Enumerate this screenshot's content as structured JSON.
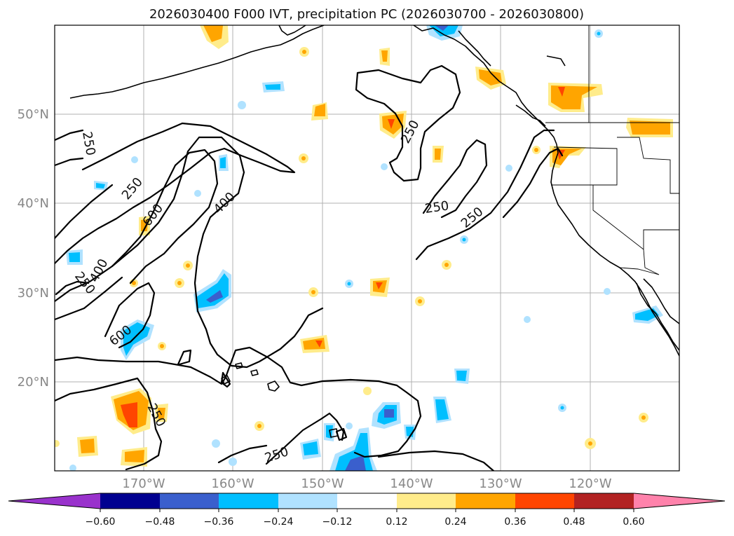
{
  "title": "2026030400 F000 IVT, precipitation PC (2026030700 - 2026030800)",
  "lat_labels": [
    "50°N",
    "40°N",
    "30°N",
    "20°N"
  ],
  "lon_labels": [
    "170°W",
    "160°W",
    "150°W",
    "140°W",
    "130°W",
    "120°W"
  ],
  "colorbar": {
    "tick_labels": [
      "−0.60",
      "−0.48",
      "−0.36",
      "−0.24",
      "−0.12",
      "0.12",
      "0.24",
      "0.36",
      "0.48",
      "0.60"
    ],
    "colors": [
      "#9932cc",
      "#000090",
      "#3a5fcd",
      "#00bfff",
      "#b0e2ff",
      "#ffffff",
      "#ffec8b",
      "#ffa500",
      "#ff4500",
      "#b22222",
      "#ff82ab"
    ]
  },
  "contour_labels": {
    "c1": "250",
    "c2": "250",
    "c3": "600",
    "c4": "400",
    "c5": "250",
    "c6": "400",
    "c7": "600",
    "c8": "250",
    "c9": "250",
    "c10": "250",
    "c11": "250",
    "c12": "250"
  },
  "chart_data": {
    "type": "heatmap",
    "title": "2026030400 F000 IVT, precipitation PC (2026030700 - 2026030800)",
    "projection": "lat-lon",
    "lon_range_degW": [
      180,
      110
    ],
    "lat_range_degN": [
      10,
      60
    ],
    "gridlines": true,
    "ivt_contour_levels": [
      250,
      400,
      600
    ],
    "colorbar_levels": [
      -0.6,
      -0.48,
      -0.36,
      -0.24,
      -0.12,
      0.12,
      0.24,
      0.36,
      0.48,
      0.6
    ],
    "colorbar_extend": "both"
  }
}
